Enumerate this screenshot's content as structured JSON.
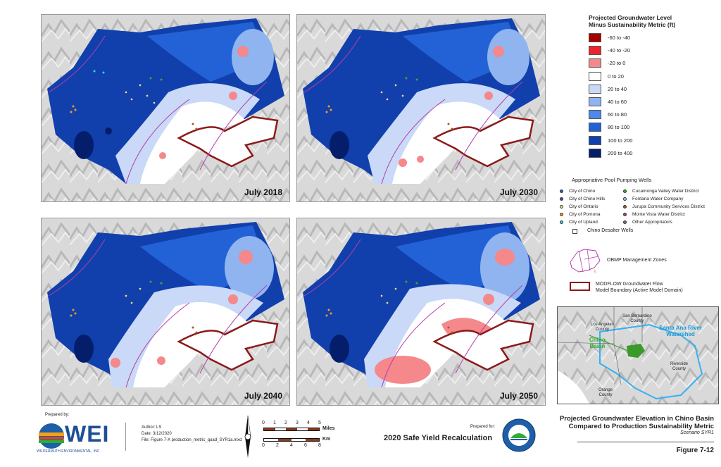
{
  "panels": [
    {
      "label": "July 2018"
    },
    {
      "label": "July 2030"
    },
    {
      "label": "July 2040"
    },
    {
      "label": "July 2050"
    }
  ],
  "legend": {
    "title_line1": "Projected Groundwater Level",
    "title_line2": "Minus Sustainability Metric (ft)",
    "classes": [
      {
        "label": "-60 to -40",
        "color": "#a50000"
      },
      {
        "label": "-40 to -20",
        "color": "#e8262b"
      },
      {
        "label": "-20 to 0",
        "color": "#f4888a"
      },
      {
        "label": "0 to 20",
        "color": "#ffffff"
      },
      {
        "label": "20 to 40",
        "color": "#c9d9f7"
      },
      {
        "label": "40 to 60",
        "color": "#8fb4ef"
      },
      {
        "label": "60 to 80",
        "color": "#4d88ea"
      },
      {
        "label": "80 to 100",
        "color": "#2362d6"
      },
      {
        "label": "100 to 200",
        "color": "#1140ad"
      },
      {
        "label": "200 to 400",
        "color": "#051e6b"
      }
    ]
  },
  "wells": {
    "title": "Appropriative Pool Pumping Wells",
    "left": [
      {
        "label": "City of Chino",
        "color": "#2a5cd6"
      },
      {
        "label": "City of Chino Hills",
        "color": "#6a3fb0"
      },
      {
        "label": "City of Ontario",
        "color": "#e9e3a0"
      },
      {
        "label": "City of Pomona",
        "color": "#f0a21c"
      },
      {
        "label": "City of Upland",
        "color": "#38d6d6"
      }
    ],
    "right": [
      {
        "label": "Cucamonga Valley Water District",
        "color": "#2fae2f"
      },
      {
        "label": "Fontana Water Company",
        "color": "#9fd2f0"
      },
      {
        "label": "Jurupa Community Services District",
        "color": "#a05a2c"
      },
      {
        "label": "Monte Vista Water District",
        "color": "#c02fa0"
      },
      {
        "label": "Other Appropriators",
        "color": "#707070"
      }
    ]
  },
  "symbols": {
    "desalter": "Chino Desalter Wells",
    "zones": "OBMP Management Zones",
    "boundary_line1": "MODFLOW Groundwater Flow",
    "boundary_line2": "Model Boundary (Active Model Domain)"
  },
  "inset": {
    "san_bernardino": "San Bernardino\nCounty",
    "los_angeles": "Los Angeles\nCounty",
    "chino_basin": "Chino\nBasin",
    "santa_ana": "Santa Ana River\nWatershed",
    "riverside": "Riverside\nCounty",
    "orange": "Orange\nCounty"
  },
  "footer": {
    "prepared_by": "Prepared by:",
    "wei": "WEI",
    "wei_sub": "WILDERMUTH ENVIRONMENTAL, INC.",
    "author": "Author: LS",
    "date": "Date: 3/12/2020",
    "file": "File: Figure 7-X production_metric_quad_SYR1a.mxd",
    "scale_top_ticks": [
      "0",
      "1",
      "2",
      "3",
      "4",
      "5"
    ],
    "scale_top_unit": "Miles",
    "scale_bottom_ticks": [
      "0",
      "2",
      "4",
      "6",
      "8"
    ],
    "scale_bottom_unit": "Km",
    "prepared_for": "Prepared for:",
    "project": "2020 Safe Yield Recalculation",
    "seal_text": "CHINO BASIN WATERMASTER",
    "title_line1": "Projected Groundwater Elevation in Chino Basin",
    "title_line2": "Compared to Production Sustainability Metric",
    "scenario": "Scenario SYR1",
    "figure": "Figure 7-12"
  }
}
